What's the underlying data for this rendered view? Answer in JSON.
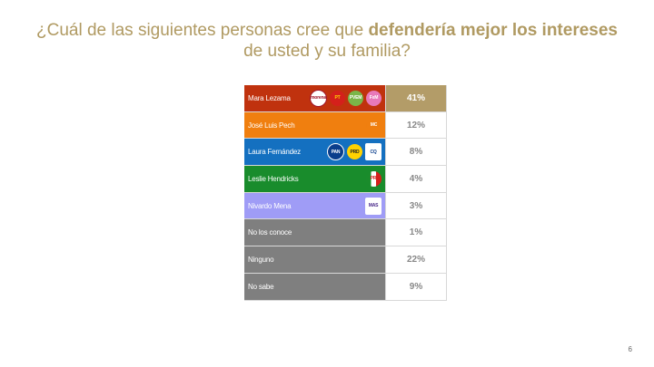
{
  "title": {
    "part1": "¿Cuál de las siguientes personas cree que ",
    "bold": "defendería mejor los intereses",
    "part2": " de usted y su familia?"
  },
  "page_number": "6",
  "chart_data": {
    "type": "table",
    "title": "¿Cuál de las siguientes personas cree que defendería mejor los intereses de usted y su familia?",
    "rows": [
      {
        "label": "Mara Lezama",
        "value": 41,
        "display": "41%",
        "color": "#c0320e",
        "highlight": true,
        "logos": [
          "morena",
          "PT",
          "PVEM",
          "FxM"
        ]
      },
      {
        "label": "José Luis Pech",
        "value": 12,
        "display": "12%",
        "color": "#f07f0f",
        "logos": [
          "MC"
        ]
      },
      {
        "label": "Laura Fernández",
        "value": 8,
        "display": "8%",
        "color": "#1470c0",
        "logos": [
          "PAN",
          "PRD",
          "CQ"
        ]
      },
      {
        "label": "Leslie Hendricks",
        "value": 4,
        "display": "4%",
        "color": "#198c2c",
        "logos": [
          "PRI"
        ]
      },
      {
        "label": "Nivardo Mena",
        "value": 3,
        "display": "3%",
        "color": "#9f9cf6",
        "logos": [
          "MAS"
        ]
      },
      {
        "label": "No los conoce",
        "value": 1,
        "display": "1%",
        "color": "#7f7f7f",
        "logos": []
      },
      {
        "label": "Ninguno",
        "value": 22,
        "display": "22%",
        "color": "#7f7f7f",
        "logos": []
      },
      {
        "label": "No sabe",
        "value": 9,
        "display": "9%",
        "color": "#7f7f7f",
        "logos": []
      }
    ]
  }
}
